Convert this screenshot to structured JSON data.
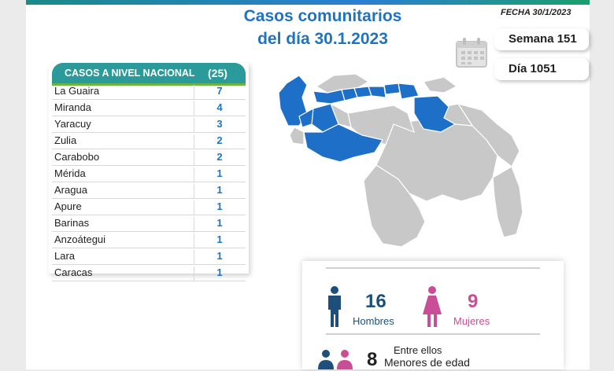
{
  "header": {
    "title_line1": "Casos comunitarios",
    "title_line2": "del día 30.1.2023",
    "fecha": "FECHA 30/1/2023"
  },
  "badges": {
    "semana": "Semana 151",
    "dia": "Día 1051"
  },
  "nacional": {
    "label": "CASOS A NIVEL NACIONAL",
    "total": "(25)",
    "rows": [
      {
        "estado": "La Guaira",
        "casos": "7"
      },
      {
        "estado": "Miranda",
        "casos": "4"
      },
      {
        "estado": "Yaracuy",
        "casos": "3"
      },
      {
        "estado": "Zulia",
        "casos": "2"
      },
      {
        "estado": "Carabobo",
        "casos": "2"
      },
      {
        "estado": "Mérida",
        "casos": "1"
      },
      {
        "estado": "Aragua",
        "casos": "1"
      },
      {
        "estado": "Apure",
        "casos": "1"
      },
      {
        "estado": "Barinas",
        "casos": "1"
      },
      {
        "estado": "Anzoátegui",
        "casos": "1"
      },
      {
        "estado": "Lara",
        "casos": "1"
      },
      {
        "estado": "Caracas",
        "casos": "1"
      }
    ]
  },
  "stats": {
    "hombres_count": "16",
    "hombres_label": "Hombres",
    "mujeres_count": "9",
    "mujeres_label": "Mujeres",
    "menores_intro": "Entre ellos",
    "menores_count": "8",
    "menores_label": "Menores de edad"
  },
  "colors": {
    "title_blue": "#1f74c2",
    "teal": "#2b9a9a",
    "green": "#6db33f",
    "male": "#1d4f7a",
    "female": "#c94d97",
    "map_active": "#1e6fc8",
    "map_inactive": "#c8c8c8"
  }
}
